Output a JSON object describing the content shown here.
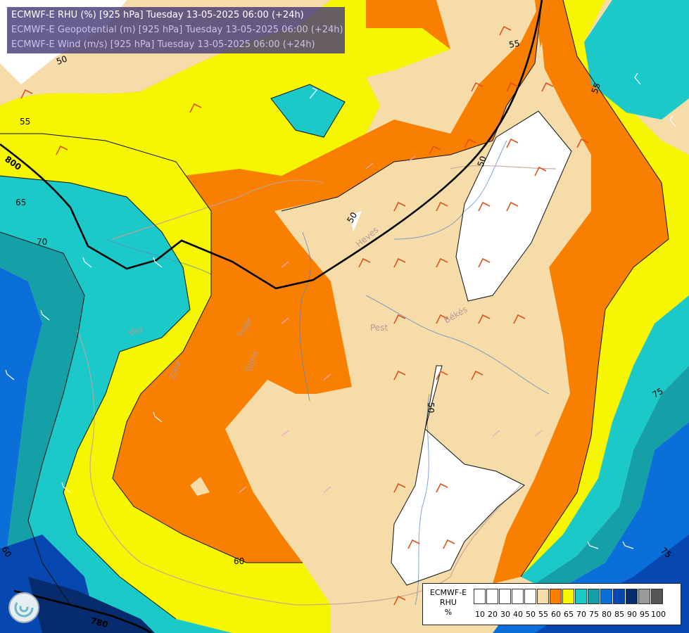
{
  "title_lines": [
    "ECMWF-E RHU (%) [925 hPa] Tuesday 13-05-2025 06:00 (+24h)",
    "ECMWF-E Geopotential (m) [925 hPa] Tuesday 13-05-2025 06:00 (+24h)",
    "ECMWF-E Wind (m/s) [925 hPa] Tuesday 13-05-2025 06:00 (+24h)"
  ],
  "scale": {
    "title_lines": [
      "ECMWF-E",
      "RHU",
      "%"
    ],
    "bins": [
      {
        "label": "10",
        "color": "#ffffff"
      },
      {
        "label": "20",
        "color": "#ffffff"
      },
      {
        "label": "30",
        "color": "#ffffff"
      },
      {
        "label": "40",
        "color": "#ffffff"
      },
      {
        "label": "50",
        "color": "#ffffff"
      },
      {
        "label": "55",
        "color": "#f6dca8"
      },
      {
        "label": "60",
        "color": "#f87f00"
      },
      {
        "label": "65",
        "color": "#f6f600"
      },
      {
        "label": "70",
        "color": "#1cc9c9"
      },
      {
        "label": "75",
        "color": "#15a0a8"
      },
      {
        "label": "80",
        "color": "#0a6fd8"
      },
      {
        "label": "85",
        "color": "#0648b0"
      },
      {
        "label": "90",
        "color": "#072c6e"
      },
      {
        "label": "95",
        "color": "#9a9a9a"
      },
      {
        "label": "100",
        "color": "#555555"
      }
    ]
  },
  "contour_labels": [
    "50",
    "55",
    "50",
    "55",
    "55",
    "65",
    "70",
    "50",
    "50",
    "60",
    "60",
    "75",
    "75",
    "800",
    "780"
  ],
  "place_labels": [
    "Pest",
    "Békés",
    "Heves",
    "Vas",
    "Zala",
    "Tolna",
    "Fejér"
  ],
  "colors": {
    "dry": "#ffffff",
    "rh55": "#f6dca8",
    "rh60": "#f87f00",
    "rh65": "#f6f600",
    "rh70": "#1cc9c9",
    "rh75": "#15a0a8",
    "rh80": "#0a6fd8",
    "rh85": "#0648b0",
    "rh90": "#072c6e"
  }
}
